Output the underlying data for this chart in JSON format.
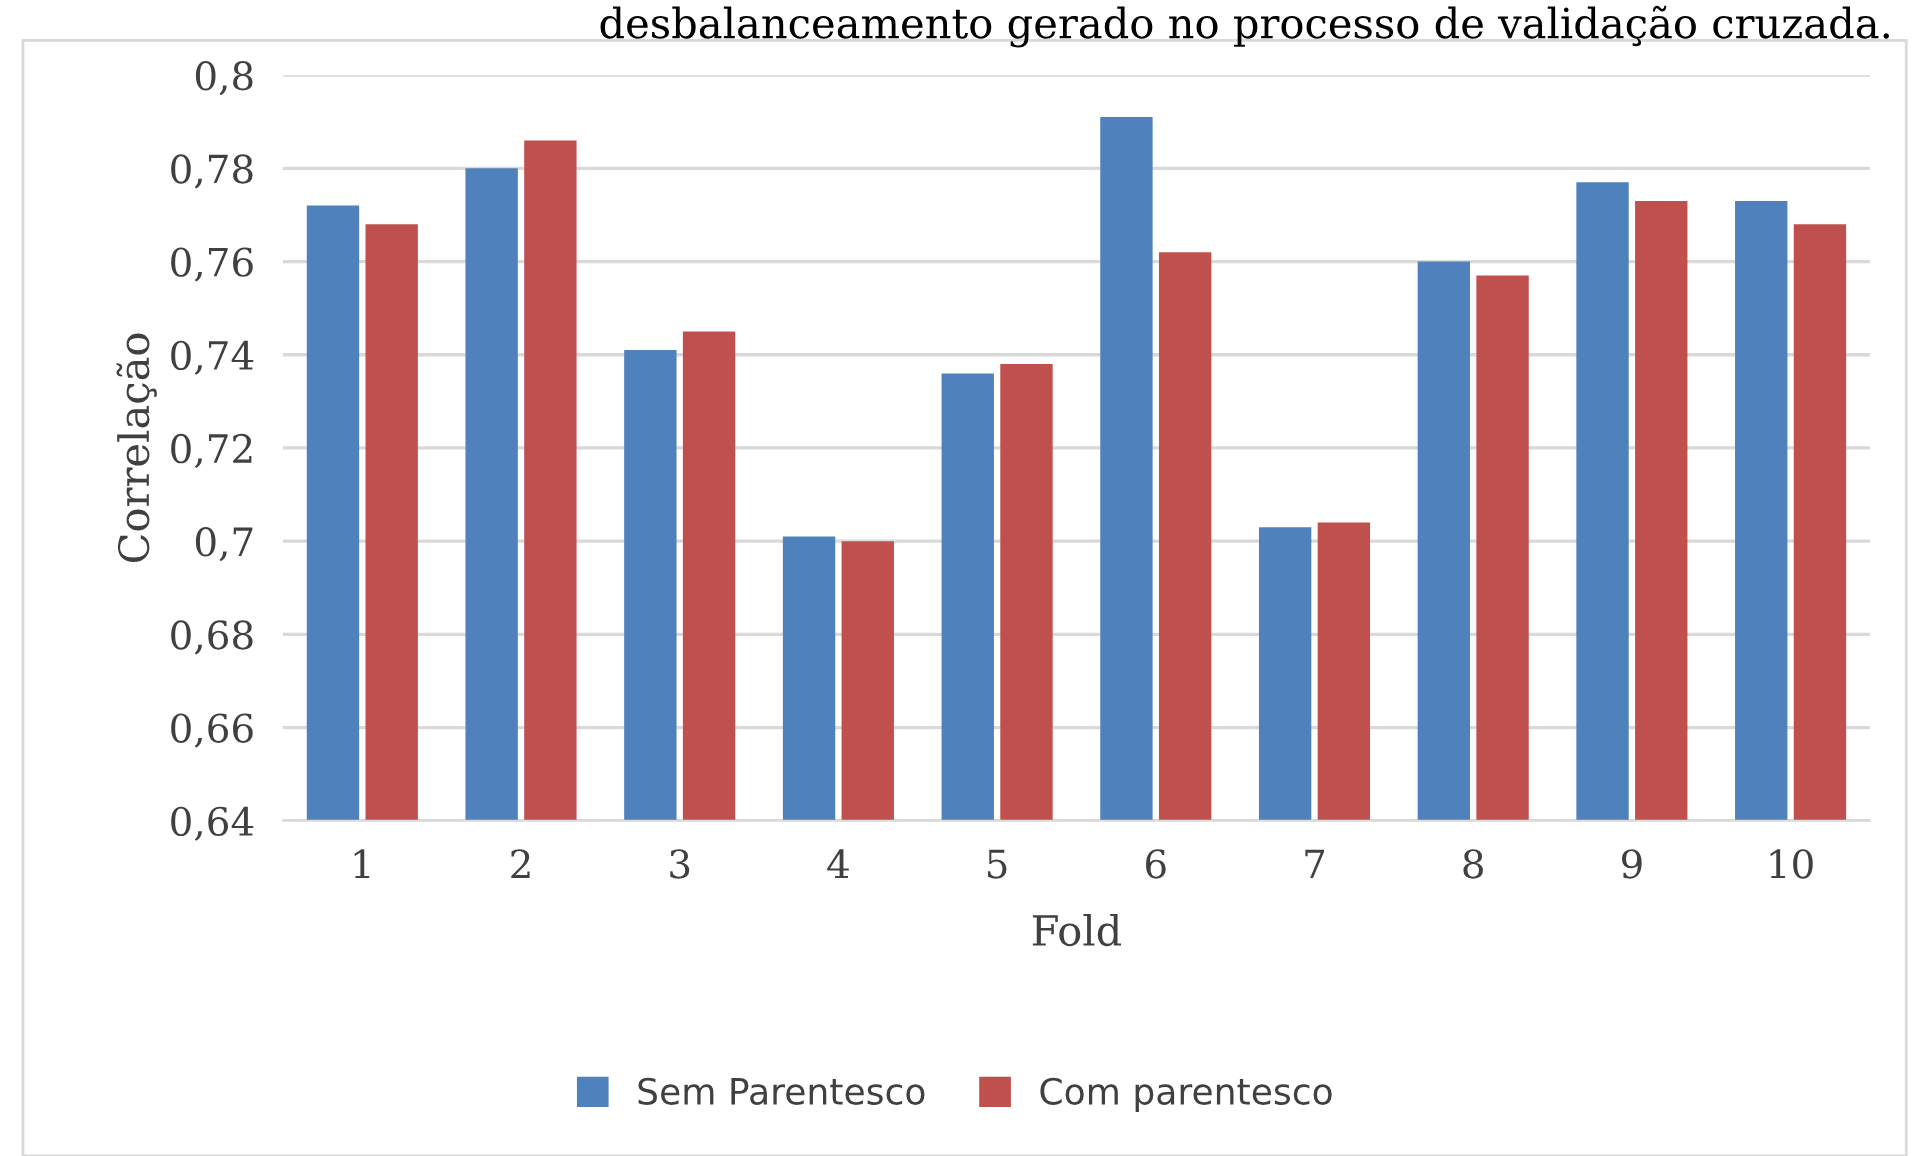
{
  "chart_data": {
    "type": "bar",
    "xlabel": "Fold",
    "ylabel": "Correlação",
    "categories": [
      "1",
      "2",
      "3",
      "4",
      "5",
      "6",
      "7",
      "8",
      "9",
      "10"
    ],
    "series": [
      {
        "name": "Sem Parentesco",
        "color": "#4f81bd",
        "values": [
          0.772,
          0.78,
          0.741,
          0.701,
          0.736,
          0.791,
          0.703,
          0.76,
          0.777,
          0.773
        ]
      },
      {
        "name": "Com parentesco",
        "color": "#c0504d",
        "values": [
          0.768,
          0.786,
          0.745,
          0.7,
          0.738,
          0.762,
          0.704,
          0.757,
          0.773,
          0.768
        ]
      }
    ],
    "ylim": [
      0.64,
      0.8
    ],
    "yticks": [
      {
        "value": 0.64,
        "label": "0,64"
      },
      {
        "value": 0.66,
        "label": "0,66"
      },
      {
        "value": 0.68,
        "label": "0,68"
      },
      {
        "value": 0.7,
        "label": "0,7"
      },
      {
        "value": 0.72,
        "label": "0,72"
      },
      {
        "value": 0.74,
        "label": "0,74"
      },
      {
        "value": 0.76,
        "label": "0,76"
      },
      {
        "value": 0.78,
        "label": "0,78"
      },
      {
        "value": 0.8,
        "label": "0,8"
      }
    ],
    "grid": "y",
    "legend": "bottom",
    "annotations": [
      "desbalanceamento gerado no processo de validação cruzada."
    ]
  }
}
